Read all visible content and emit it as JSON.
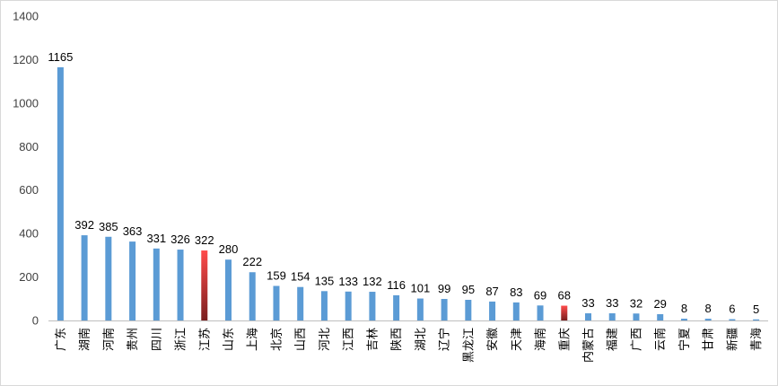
{
  "chart_data": {
    "type": "bar",
    "title": "",
    "xlabel": "",
    "ylabel": "",
    "ylim": [
      0,
      1400
    ],
    "yticks": [
      "0",
      "200",
      "400",
      "600",
      "800",
      "1000",
      "1200",
      "1400"
    ],
    "grid": false,
    "legend": "none",
    "categories": [
      "广东",
      "湖南",
      "河南",
      "贵州",
      "四川",
      "浙江",
      "江苏",
      "山东",
      "上海",
      "北京",
      "山西",
      "河北",
      "江西",
      "吉林",
      "陕西",
      "湖北",
      "辽宁",
      "黑龙江",
      "安徽",
      "天津",
      "海南",
      "重庆",
      "内蒙古",
      "福建",
      "广西",
      "云南",
      "宁夏",
      "甘肃",
      "新疆",
      "青海"
    ],
    "values": [
      1165,
      392,
      385,
      363,
      331,
      326,
      322,
      280,
      222,
      159,
      154,
      135,
      133,
      132,
      116,
      101,
      99,
      95,
      87,
      83,
      69,
      68,
      33,
      33,
      32,
      29,
      8,
      8,
      6,
      5
    ],
    "value_labels": [
      "1165",
      "392",
      "385",
      "363",
      "331",
      "326",
      "322",
      "280",
      "222",
      "159",
      "154",
      "135",
      "133",
      "132",
      "116",
      "101",
      "99",
      "95",
      "87",
      "83",
      "69",
      "68",
      "33",
      "33",
      "32",
      "29",
      "8",
      "8",
      "6",
      "5"
    ],
    "highlighted": [
      "江苏",
      "重庆"
    ],
    "colors": {
      "bar": "#5b9bd5",
      "highlight_top": "#ff4b4b",
      "highlight_bottom": "#7a1f1f",
      "axis": "#bfbfbf",
      "text": "#000000",
      "tick_text": "#404040"
    }
  }
}
